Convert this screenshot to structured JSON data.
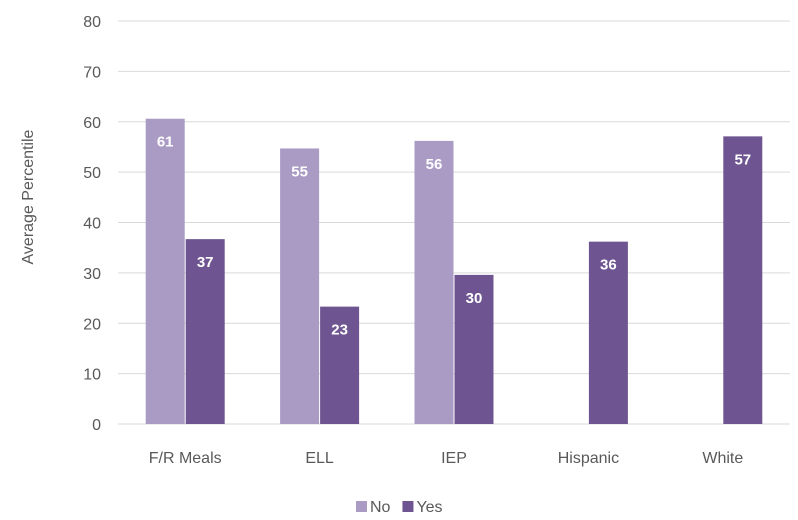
{
  "chart_data": {
    "type": "bar",
    "ylabel": "Average Percentile",
    "ylim": [
      0,
      80
    ],
    "yticks": [
      0,
      10,
      20,
      30,
      40,
      50,
      60,
      70,
      80
    ],
    "categories": [
      "F/R Meals",
      "ELL",
      "IEP",
      "Hispanic",
      "White"
    ],
    "series": [
      {
        "name": "No",
        "values": [
          60.6,
          54.7,
          56.2,
          null,
          null
        ],
        "labels": [
          "61",
          "55",
          "56",
          null,
          null
        ]
      },
      {
        "name": "Yes",
        "values": [
          36.7,
          23.3,
          29.6,
          36.2,
          57.1
        ],
        "labels": [
          "37",
          "23",
          "30",
          "36",
          "57"
        ]
      }
    ],
    "colors": {
      "No": "#a99bc4",
      "Yes": "#6e5591",
      "grid": "#d9d9d9"
    },
    "grid": true,
    "legend_position": "bottom"
  }
}
